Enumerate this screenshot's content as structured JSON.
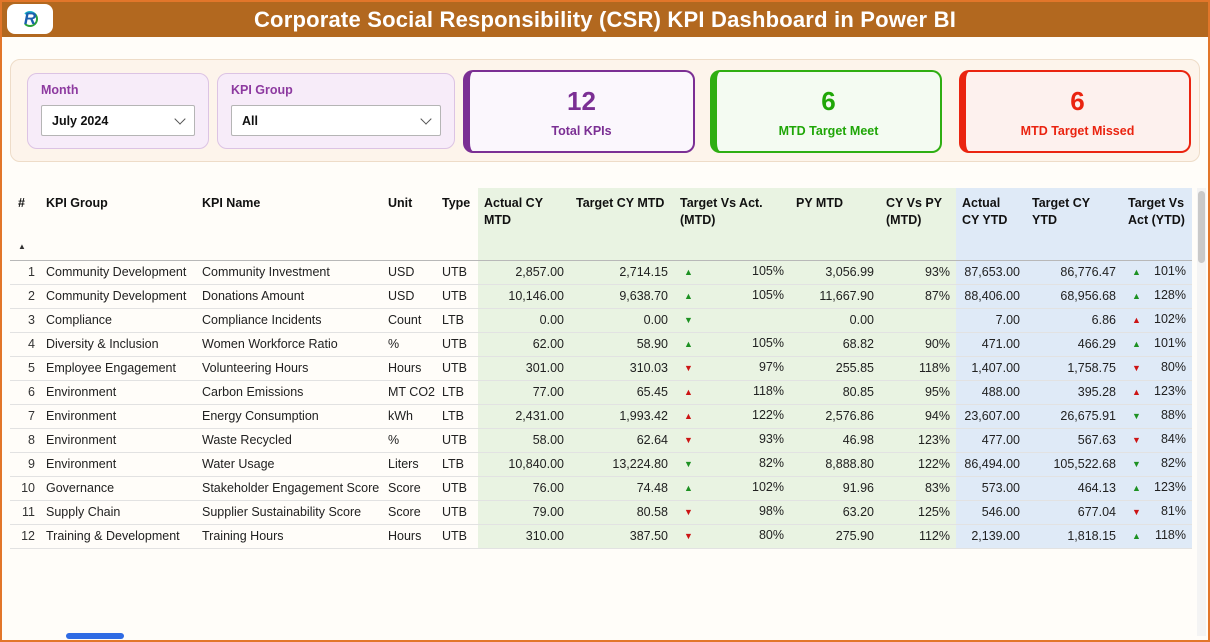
{
  "header": {
    "title": "Corporate Social Responsibility (CSR) KPI Dashboard in Power BI",
    "logo_letter": "R"
  },
  "filters": {
    "month_label": "Month",
    "month_value": "July 2024",
    "group_label": "KPI Group",
    "group_value": "All"
  },
  "cards": {
    "total": {
      "value": "12",
      "label": "Total KPIs"
    },
    "meet": {
      "value": "6",
      "label": "MTD Target Meet"
    },
    "missed": {
      "value": "6",
      "label": "MTD Target Missed"
    }
  },
  "colors": {
    "header_brown": "#b2681f",
    "accent_purple": "#7b2f94",
    "accent_green": "#2fae12",
    "accent_red": "#ea2410",
    "mtd_section_bg": "#e9f3e2",
    "ytd_section_bg": "#dfeaf7",
    "trend_good": "#1d9122",
    "trend_bad": "#cc1414"
  },
  "table": {
    "sort_indicator": "ascending-on-first-column",
    "headers": {
      "num": "#",
      "group": "KPI Group",
      "name": "KPI Name",
      "unit": "Unit",
      "type": "Type",
      "actual_mtd": "Actual CY MTD",
      "target_mtd": "Target CY MTD",
      "tva_mtd": "Target Vs Act. (MTD)",
      "py_mtd": "PY MTD",
      "cy_py": "CY Vs PY (MTD)",
      "actual_ytd": "Actual CY YTD",
      "target_ytd": "Target CY YTD",
      "tva_ytd": "Target Vs Act (YTD)"
    },
    "rows": [
      {
        "num": "1",
        "group": "Community Development",
        "name": "Community Investment",
        "unit": "USD",
        "type": "UTB",
        "actual_mtd": "2,857.00",
        "target_mtd": "2,714.15",
        "tva_mtd": {
          "dir": "up",
          "state": "good",
          "pct": "105%"
        },
        "py_mtd": "3,056.99",
        "cy_py": "93%",
        "actual_ytd": "87,653.00",
        "target_ytd": "86,776.47",
        "tva_ytd": {
          "dir": "up",
          "state": "good",
          "pct": "101%"
        }
      },
      {
        "num": "2",
        "group": "Community Development",
        "name": "Donations Amount",
        "unit": "USD",
        "type": "UTB",
        "actual_mtd": "10,146.00",
        "target_mtd": "9,638.70",
        "tva_mtd": {
          "dir": "up",
          "state": "good",
          "pct": "105%"
        },
        "py_mtd": "11,667.90",
        "cy_py": "87%",
        "actual_ytd": "88,406.00",
        "target_ytd": "68,956.68",
        "tva_ytd": {
          "dir": "up",
          "state": "good",
          "pct": "128%"
        }
      },
      {
        "num": "3",
        "group": "Compliance",
        "name": "Compliance Incidents",
        "unit": "Count",
        "type": "LTB",
        "actual_mtd": "0.00",
        "target_mtd": "0.00",
        "tva_mtd": {
          "dir": "down",
          "state": "good",
          "pct": ""
        },
        "py_mtd": "0.00",
        "cy_py": "",
        "actual_ytd": "7.00",
        "target_ytd": "6.86",
        "tva_ytd": {
          "dir": "up",
          "state": "bad",
          "pct": "102%"
        }
      },
      {
        "num": "4",
        "group": "Diversity & Inclusion",
        "name": "Women Workforce Ratio",
        "unit": "%",
        "type": "UTB",
        "actual_mtd": "62.00",
        "target_mtd": "58.90",
        "tva_mtd": {
          "dir": "up",
          "state": "good",
          "pct": "105%"
        },
        "py_mtd": "68.82",
        "cy_py": "90%",
        "actual_ytd": "471.00",
        "target_ytd": "466.29",
        "tva_ytd": {
          "dir": "up",
          "state": "good",
          "pct": "101%"
        }
      },
      {
        "num": "5",
        "group": "Employee Engagement",
        "name": "Volunteering Hours",
        "unit": "Hours",
        "type": "UTB",
        "actual_mtd": "301.00",
        "target_mtd": "310.03",
        "tva_mtd": {
          "dir": "down",
          "state": "bad",
          "pct": "97%"
        },
        "py_mtd": "255.85",
        "cy_py": "118%",
        "actual_ytd": "1,407.00",
        "target_ytd": "1,758.75",
        "tva_ytd": {
          "dir": "down",
          "state": "bad",
          "pct": "80%"
        }
      },
      {
        "num": "6",
        "group": "Environment",
        "name": "Carbon Emissions",
        "unit": "MT CO2",
        "type": "LTB",
        "actual_mtd": "77.00",
        "target_mtd": "65.45",
        "tva_mtd": {
          "dir": "up",
          "state": "bad",
          "pct": "118%"
        },
        "py_mtd": "80.85",
        "cy_py": "95%",
        "actual_ytd": "488.00",
        "target_ytd": "395.28",
        "tva_ytd": {
          "dir": "up",
          "state": "bad",
          "pct": "123%"
        }
      },
      {
        "num": "7",
        "group": "Environment",
        "name": "Energy Consumption",
        "unit": "kWh",
        "type": "LTB",
        "actual_mtd": "2,431.00",
        "target_mtd": "1,993.42",
        "tva_mtd": {
          "dir": "up",
          "state": "bad",
          "pct": "122%"
        },
        "py_mtd": "2,576.86",
        "cy_py": "94%",
        "actual_ytd": "23,607.00",
        "target_ytd": "26,675.91",
        "tva_ytd": {
          "dir": "down",
          "state": "good",
          "pct": "88%"
        }
      },
      {
        "num": "8",
        "group": "Environment",
        "name": "Waste Recycled",
        "unit": "%",
        "type": "UTB",
        "actual_mtd": "58.00",
        "target_mtd": "62.64",
        "tva_mtd": {
          "dir": "down",
          "state": "bad",
          "pct": "93%"
        },
        "py_mtd": "46.98",
        "cy_py": "123%",
        "actual_ytd": "477.00",
        "target_ytd": "567.63",
        "tva_ytd": {
          "dir": "down",
          "state": "bad",
          "pct": "84%"
        }
      },
      {
        "num": "9",
        "group": "Environment",
        "name": "Water Usage",
        "unit": "Liters",
        "type": "LTB",
        "actual_mtd": "10,840.00",
        "target_mtd": "13,224.80",
        "tva_mtd": {
          "dir": "down",
          "state": "good",
          "pct": "82%"
        },
        "py_mtd": "8,888.80",
        "cy_py": "122%",
        "actual_ytd": "86,494.00",
        "target_ytd": "105,522.68",
        "tva_ytd": {
          "dir": "down",
          "state": "good",
          "pct": "82%"
        }
      },
      {
        "num": "10",
        "group": "Governance",
        "name": "Stakeholder Engagement Score",
        "unit": "Score",
        "type": "UTB",
        "actual_mtd": "76.00",
        "target_mtd": "74.48",
        "tva_mtd": {
          "dir": "up",
          "state": "good",
          "pct": "102%"
        },
        "py_mtd": "91.96",
        "cy_py": "83%",
        "actual_ytd": "573.00",
        "target_ytd": "464.13",
        "tva_ytd": {
          "dir": "up",
          "state": "good",
          "pct": "123%"
        }
      },
      {
        "num": "11",
        "group": "Supply Chain",
        "name": "Supplier Sustainability Score",
        "unit": "Score",
        "type": "UTB",
        "actual_mtd": "79.00",
        "target_mtd": "80.58",
        "tva_mtd": {
          "dir": "down",
          "state": "bad",
          "pct": "98%"
        },
        "py_mtd": "63.20",
        "cy_py": "125%",
        "actual_ytd": "546.00",
        "target_ytd": "677.04",
        "tva_ytd": {
          "dir": "down",
          "state": "bad",
          "pct": "81%"
        }
      },
      {
        "num": "12",
        "group": "Training & Development",
        "name": "Training Hours",
        "unit": "Hours",
        "type": "UTB",
        "actual_mtd": "310.00",
        "target_mtd": "387.50",
        "tva_mtd": {
          "dir": "down",
          "state": "bad",
          "pct": "80%"
        },
        "py_mtd": "275.90",
        "cy_py": "112%",
        "actual_ytd": "2,139.00",
        "target_ytd": "1,818.15",
        "tva_ytd": {
          "dir": "up",
          "state": "good",
          "pct": "118%"
        }
      }
    ]
  }
}
